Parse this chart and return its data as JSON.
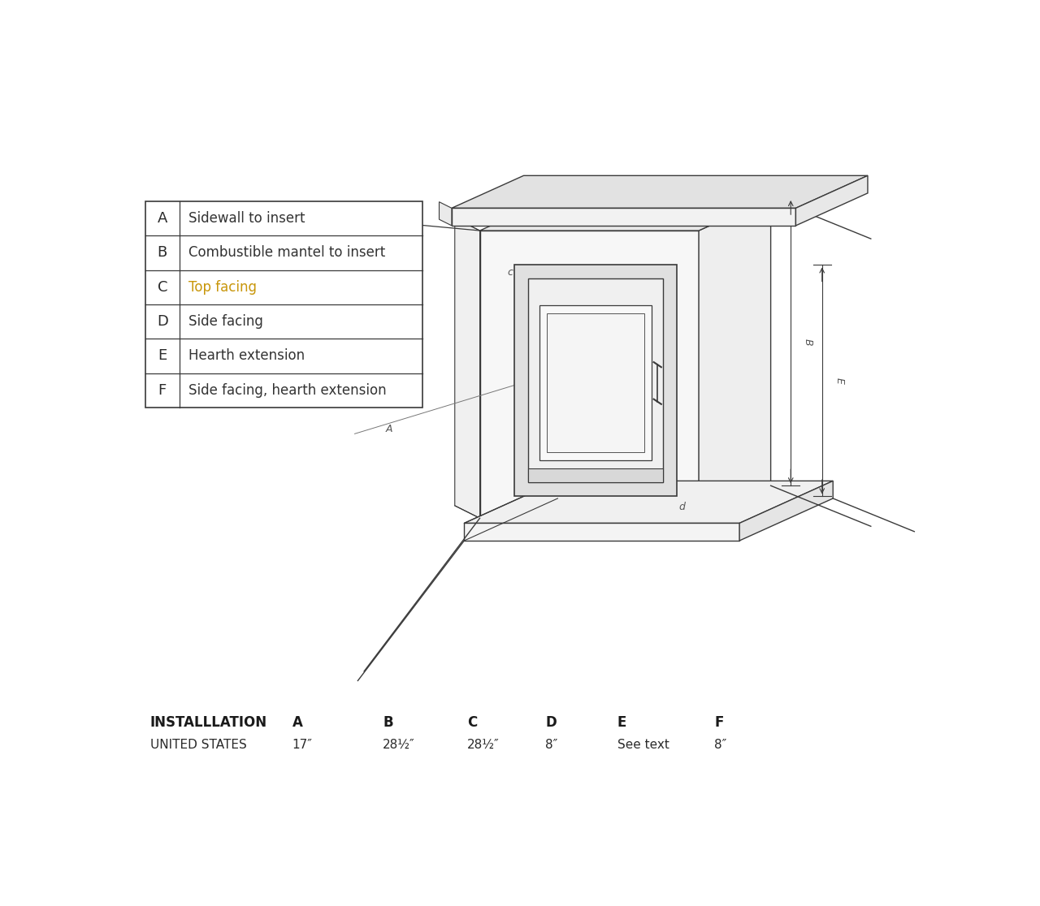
{
  "background_color": "#ffffff",
  "table_data": [
    [
      "A",
      "Sidewall to insert",
      "#333333"
    ],
    [
      "B",
      "Combustible mantel to insert",
      "#333333"
    ],
    [
      "C",
      "Top facing",
      "#c8960a"
    ],
    [
      "D",
      "Side facing",
      "#333333"
    ],
    [
      "E",
      "Hearth extension",
      "#333333"
    ],
    [
      "F",
      "Side facing, hearth extension",
      "#333333"
    ]
  ],
  "installation_headers": [
    "INSTALLLATION",
    "A",
    "B",
    "C",
    "D",
    "E",
    "F"
  ],
  "installation_us_row": [
    "UNITED STATES",
    "17″",
    "28½″",
    "28½″",
    "8″",
    "See text",
    "8″"
  ],
  "line_color": "#3a3a3a",
  "face_color_wall": "#f7f7f7",
  "face_color_side": "#eeeeee",
  "face_color_top": "#e8e8e8",
  "face_color_shelf_top": "#e2e2e2",
  "face_color_hearth": "#f0f0f0",
  "face_color_insert": "#e8e8e8"
}
